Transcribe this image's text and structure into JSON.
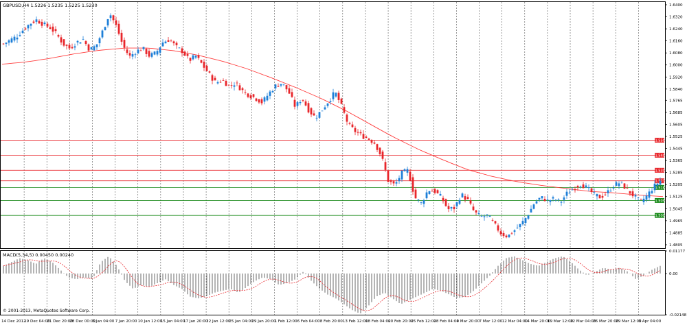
{
  "chart_data": [
    {
      "type": "candlestick",
      "title": "GBPUSD,H4  1.5226 1.5235 1.5225 1.5230",
      "x_labels": [
        "14 Dec 2012",
        "19 Dec 04:00",
        "21 Dec 20:00",
        "28 Dec 00:00",
        "3 Jan 04:00",
        "7 Jan 20:00",
        "10 Jan 12:00",
        "15 Jan 04:00",
        "17 Jan 20:00",
        "22 Jan 12:00",
        "25 Jan 04:00",
        "29 Jan 20:00",
        "1 Feb 12:00",
        "6 Feb 04:00",
        "8 Feb 20:00",
        "13 Feb 12:00",
        "18 Feb 04:00",
        "20 Feb 20:00",
        "25 Feb 12:00",
        "28 Feb 04:00",
        "4 Mar 20:00",
        "7 Mar 12:00",
        "12 Mar 04:00",
        "14 Mar 20:00",
        "19 Mar 12:00",
        "22 Mar 04:00",
        "26 Mar 20:00",
        "29 Mar 12:00",
        "3 Apr 04:00"
      ],
      "y_ticks": [
        "1.6400",
        "1.6320",
        "1.6240",
        "1.6160",
        "1.6080",
        "1.6000",
        "1.5920",
        "1.5840",
        "1.5765",
        "1.5685",
        "1.5605",
        "1.5525",
        "1.5445",
        "1.5365",
        "1.5285",
        "1.5205",
        "1.5125",
        "1.5045",
        "1.4965",
        "1.4885",
        "1.4805"
      ],
      "ylim": [
        1.4782,
        1.6418
      ],
      "price_series_keypoints": [
        1.614,
        1.6165,
        1.619,
        1.6235,
        1.6275,
        1.63,
        1.627,
        1.625,
        1.6205,
        1.614,
        1.611,
        1.615,
        1.617,
        1.61,
        1.613,
        1.623,
        1.6345,
        1.626,
        1.613,
        1.6055,
        1.609,
        1.611,
        1.606,
        1.608,
        1.615,
        1.617,
        1.612,
        1.609,
        1.603,
        1.606,
        1.6,
        1.594,
        1.588,
        1.59,
        1.586,
        1.588,
        1.583,
        1.58,
        1.578,
        1.575,
        1.581,
        1.586,
        1.588,
        1.582,
        1.572,
        1.578,
        1.57,
        1.565,
        1.57,
        1.576,
        1.582,
        1.572,
        1.56,
        1.556,
        1.553,
        1.551,
        1.548,
        1.539,
        1.523,
        1.52,
        1.528,
        1.53,
        1.512,
        1.508,
        1.517,
        1.516,
        1.512,
        1.504,
        1.505,
        1.514,
        1.51,
        1.502,
        1.499,
        1.5,
        1.494,
        1.488,
        1.486,
        1.49,
        1.494,
        1.5,
        1.508,
        1.512,
        1.51,
        1.511,
        1.509,
        1.515,
        1.518,
        1.521,
        1.518,
        1.514,
        1.512,
        1.515,
        1.52,
        1.522,
        1.517,
        1.513,
        1.509,
        1.513,
        1.519,
        1.523
      ],
      "moving_average": {
        "color": "#ff3b3b",
        "keypoints": [
          1.6005,
          1.602,
          1.6045,
          1.6075,
          1.6098,
          1.6112,
          1.6112,
          1.6095,
          1.6065,
          1.6025,
          1.5975,
          1.5915,
          1.585,
          1.578,
          1.57,
          1.561,
          1.552,
          1.544,
          1.537,
          1.5305,
          1.526,
          1.5225,
          1.52,
          1.518,
          1.516,
          1.515,
          1.5135,
          1.5125
        ]
      },
      "horizontal_levels": [
        {
          "value": 1.55,
          "label": "1.5500",
          "color": "#e8262b"
        },
        {
          "value": 1.54,
          "label": "1.5400",
          "color": "#e8262b"
        },
        {
          "value": 1.53,
          "label": "1.5300",
          "color": "#e8262b"
        },
        {
          "value": 1.523,
          "label": "1.5230",
          "color": "#e8262b"
        },
        {
          "value": 1.5186,
          "label": "1.5186",
          "color": "#1a8a1a"
        },
        {
          "value": 1.5099,
          "label": "1.5099",
          "color": "#1a8a1a"
        },
        {
          "value": 1.5,
          "label": "1.5000",
          "color": "#1a8a1a"
        }
      ],
      "colors": {
        "bull": "#1e7fd8",
        "bear": "#e8262b",
        "grid": "#555555"
      },
      "grid": true
    },
    {
      "type": "histogram",
      "title": "MACD(5,34,5) 0.00450 0.00240",
      "y_ticks": [
        "0.01177",
        "0.00",
        "-0.02148"
      ],
      "ylim": [
        -0.02148,
        0.01177
      ],
      "histogram_keypoints": [
        0.004,
        0.006,
        0.008,
        0.007,
        0.005,
        0.008,
        0.006,
        0.002,
        -0.002,
        -0.003,
        -0.002,
        -0.003,
        0.006,
        0.009,
        0.004,
        -0.004,
        -0.008,
        -0.006,
        -0.007,
        -0.005,
        -0.003,
        -0.006,
        -0.008,
        -0.012,
        -0.013,
        -0.012,
        -0.01,
        -0.009,
        -0.008,
        -0.01,
        -0.007,
        -0.004,
        -0.002,
        -0.003,
        -0.006,
        -0.005,
        -0.003,
        0.001,
        -0.004,
        -0.008,
        -0.011,
        -0.013,
        -0.016,
        -0.019,
        -0.021,
        -0.017,
        -0.012,
        -0.01,
        -0.013,
        -0.016,
        -0.014,
        -0.012,
        -0.01,
        -0.008,
        -0.009,
        -0.011,
        -0.013,
        -0.012,
        -0.009,
        -0.005,
        -0.001,
        0.004,
        0.008,
        0.009,
        0.007,
        0.005,
        0.004,
        0.006,
        0.008,
        0.009,
        0.006,
        0.002,
        -0.001,
        0.001,
        0.003,
        0.002,
        0.003,
        0.001,
        -0.003,
        -0.001,
        0.002,
        0.004
      ],
      "signal_color": "#e8262b",
      "bar_color": "#444444"
    }
  ],
  "copyright": "© 2001-2013, MetaQuotes Software Corp."
}
